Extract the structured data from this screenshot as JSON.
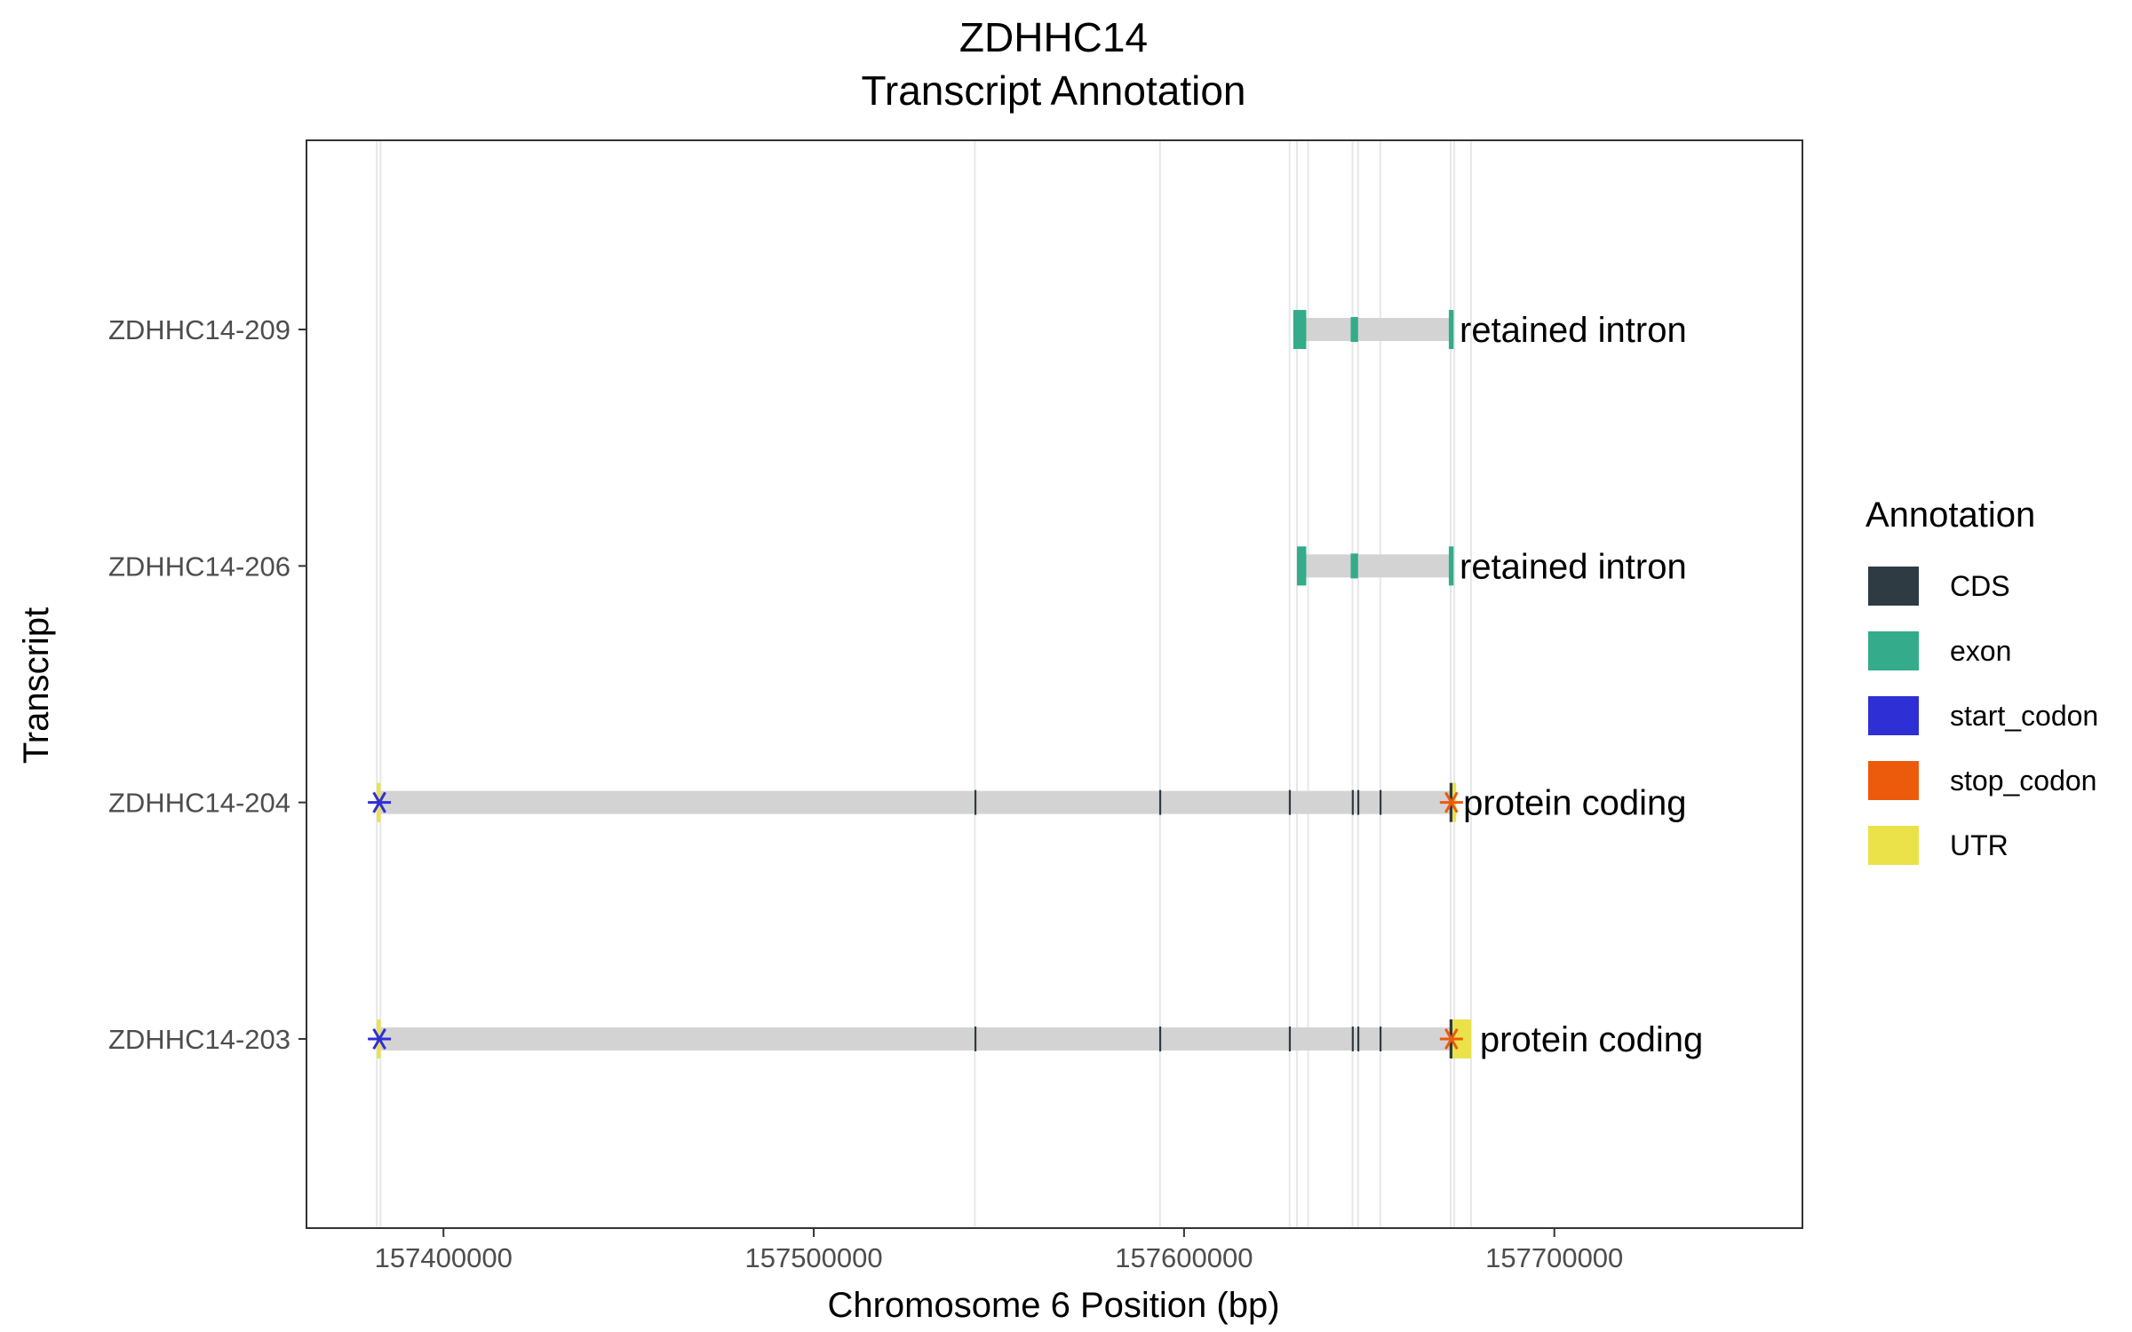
{
  "chart_data": {
    "type": "gene-structure",
    "title_line1": "ZDHHC14",
    "title_line2": "Transcript Annotation",
    "xlabel": "Chromosome 6 Position (bp)",
    "ylabel": "Transcript",
    "xlim": [
      157363000,
      157767000
    ],
    "xticks": [
      157400000,
      157500000,
      157600000,
      157700000
    ],
    "xtick_labels": [
      "157400000",
      "157500000",
      "157600000",
      "157700000"
    ],
    "grid_verticals": [
      157382000,
      157383000,
      157543500,
      157593500,
      157628500,
      157630500,
      157633500,
      157645500,
      157647000,
      157653000,
      157672000,
      157673000,
      157677500
    ],
    "colors": {
      "CDS": "#2e3b43",
      "exon": "#34ab8a",
      "start_codon": "#2f2fd6",
      "stop_codon": "#ec5a0c",
      "UTR": "#ebe24a",
      "intron": "#d3d3d3"
    },
    "legend": {
      "title": "Annotation",
      "items": [
        {
          "key": "CDS",
          "label": "CDS"
        },
        {
          "key": "exon",
          "label": "exon"
        },
        {
          "key": "start_codon",
          "label": "start_codon"
        },
        {
          "key": "stop_codon",
          "label": "stop_codon"
        },
        {
          "key": "UTR",
          "label": "UTR"
        }
      ]
    },
    "transcripts": [
      {
        "name": "ZDHHC14-209",
        "biotype": "retained intron",
        "start": 157629500,
        "end": 157672000,
        "features": [
          {
            "type": "exon",
            "start": 157629500,
            "end": 157633000,
            "tall": true
          },
          {
            "type": "exon",
            "start": 157645000,
            "end": 157647000,
            "tall": false
          },
          {
            "type": "exon",
            "start": 157671500,
            "end": 157672800,
            "tall": true
          }
        ],
        "codons": []
      },
      {
        "name": "ZDHHC14-206",
        "biotype": "retained intron",
        "start": 157630500,
        "end": 157672000,
        "features": [
          {
            "type": "exon",
            "start": 157630500,
            "end": 157633000,
            "tall": true
          },
          {
            "type": "exon",
            "start": 157645000,
            "end": 157647000,
            "tall": false
          },
          {
            "type": "exon",
            "start": 157671500,
            "end": 157672800,
            "tall": true
          }
        ],
        "codons": []
      },
      {
        "name": "ZDHHC14-204",
        "biotype": "protein coding",
        "start": 157382000,
        "end": 157673000,
        "features": [
          {
            "type": "UTR",
            "start": 157382000,
            "end": 157383000,
            "tall": true
          },
          {
            "type": "CDS",
            "start": 157543400,
            "end": 157543800,
            "tall": false
          },
          {
            "type": "CDS",
            "start": 157593300,
            "end": 157593700,
            "tall": false
          },
          {
            "type": "CDS",
            "start": 157628300,
            "end": 157628800,
            "tall": false
          },
          {
            "type": "CDS",
            "start": 157645300,
            "end": 157645800,
            "tall": false
          },
          {
            "type": "CDS",
            "start": 157646800,
            "end": 157647300,
            "tall": false
          },
          {
            "type": "CDS",
            "start": 157652800,
            "end": 157653300,
            "tall": false
          },
          {
            "type": "CDS",
            "start": 157671700,
            "end": 157672500,
            "tall": true
          },
          {
            "type": "UTR",
            "start": 157672500,
            "end": 157673500,
            "tall": true
          }
        ],
        "codons": [
          {
            "type": "start_codon",
            "pos": 157382700
          },
          {
            "type": "stop_codon",
            "pos": 157672200
          }
        ]
      },
      {
        "name": "ZDHHC14-203",
        "biotype": "protein coding",
        "start": 157382000,
        "end": 157677500,
        "features": [
          {
            "type": "UTR",
            "start": 157382000,
            "end": 157383000,
            "tall": true
          },
          {
            "type": "CDS",
            "start": 157543400,
            "end": 157543800,
            "tall": false
          },
          {
            "type": "CDS",
            "start": 157593300,
            "end": 157593700,
            "tall": false
          },
          {
            "type": "CDS",
            "start": 157628300,
            "end": 157628800,
            "tall": false
          },
          {
            "type": "CDS",
            "start": 157645300,
            "end": 157645800,
            "tall": false
          },
          {
            "type": "CDS",
            "start": 157646800,
            "end": 157647300,
            "tall": false
          },
          {
            "type": "CDS",
            "start": 157652800,
            "end": 157653300,
            "tall": false
          },
          {
            "type": "CDS",
            "start": 157671700,
            "end": 157672500,
            "tall": true
          },
          {
            "type": "UTR",
            "start": 157672500,
            "end": 157677500,
            "tall": true
          }
        ],
        "codons": [
          {
            "type": "start_codon",
            "pos": 157382700
          },
          {
            "type": "stop_codon",
            "pos": 157672200
          }
        ]
      }
    ]
  }
}
